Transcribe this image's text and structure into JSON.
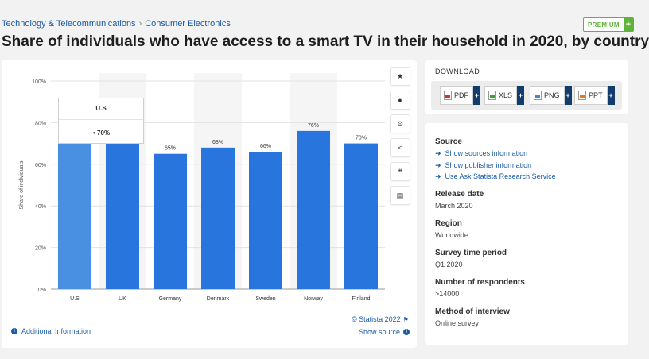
{
  "breadcrumb": {
    "part1": "Technology & Telecommunications",
    "sep": "›",
    "part2": "Consumer Electronics"
  },
  "premium": {
    "label": "PREMIUM",
    "plus": "+"
  },
  "page_title": "Share of individuals who have access to a smart TV in their household in 2020, by country",
  "colors": {
    "bar": "#2876dd",
    "bar_hover": "#4a90e2",
    "highlight_band": "#f5f5f5",
    "link": "#1a5aa6",
    "premium": "#5fb33a"
  },
  "chart_data": {
    "type": "bar",
    "title": "",
    "xlabel": "",
    "ylabel": "Share of individuals",
    "categories": [
      "U.S",
      "UK",
      "Germany",
      "Denmark",
      "Sweden",
      "Norway",
      "Finland"
    ],
    "values": [
      70,
      70,
      65,
      68,
      66,
      76,
      70
    ],
    "data_labels": [
      "",
      "",
      "65%",
      "68%",
      "66%",
      "76%",
      "70%"
    ],
    "yticks": [
      "0%",
      "20%",
      "40%",
      "60%",
      "80%",
      "100%"
    ],
    "ylim": [
      0,
      100
    ],
    "grid": true,
    "hovered_category": "U.S"
  },
  "tooltip": {
    "title": "U.S",
    "value": "70%",
    "bullet": "•"
  },
  "tools": {
    "star": "★",
    "bell": "●",
    "gear": "⚙",
    "share": "<",
    "quote": "❝",
    "print": "▤"
  },
  "footer": {
    "additional_info": "Additional Information",
    "credit": "© Statista 2022",
    "show_source": "Show source",
    "info_glyph": "i"
  },
  "download": {
    "title": "DOWNLOAD",
    "buttons": [
      {
        "label": "PDF",
        "icon": "pdf-icon"
      },
      {
        "label": "XLS",
        "icon": "xls-icon"
      },
      {
        "label": "PNG",
        "icon": "png-icon"
      },
      {
        "label": "PPT",
        "icon": "ppt-icon"
      }
    ],
    "plus": "+"
  },
  "source": {
    "heading": "Source",
    "arrow": "➜",
    "links": [
      "Show sources information",
      "Show publisher information",
      "Use Ask Statista Research Service"
    ],
    "release_date_label": "Release date",
    "release_date": "March 2020",
    "region_label": "Region",
    "region": "Worldwide",
    "survey_period_label": "Survey time period",
    "survey_period": "Q1 2020",
    "respondents_label": "Number of respondents",
    "respondents": ">14000",
    "method_label": "Method of interview",
    "method": "Online survey"
  }
}
